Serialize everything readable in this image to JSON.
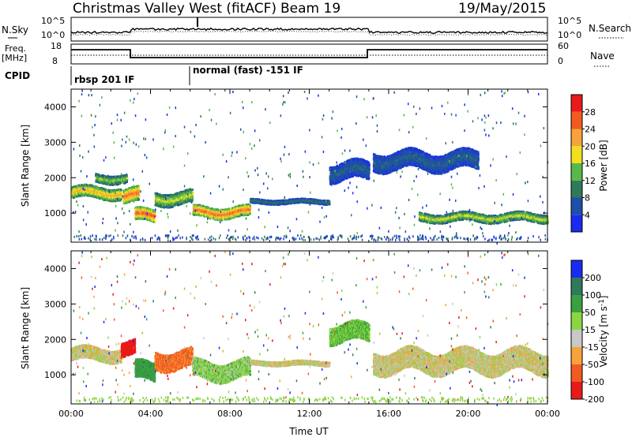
{
  "header": {
    "title": "Christmas Valley West (fitACF)",
    "beam": "Beam 19",
    "date": "19/May/2015"
  },
  "panels": {
    "nsky_label": "N.Sky",
    "nsearch_label": "N.Search",
    "nsky_ticks": [
      "10^5",
      "10^0"
    ],
    "nsearch_ticks": [
      "10^5",
      "10^0"
    ],
    "freq_label_1": "Freq.",
    "freq_label_2": "[MHz]",
    "freq_ticks": [
      "18",
      "8"
    ],
    "nave_label": "Nave",
    "nave_ticks": [
      "60",
      "0"
    ],
    "cpid_label": "CPID",
    "cpid_modes": [
      {
        "text": "rbsp 201 IF",
        "start_hour": 0
      },
      {
        "text": "normal (fast) -151 IF",
        "start_hour": 6
      }
    ]
  },
  "chart_data": [
    {
      "type": "heatmap",
      "name": "power",
      "ylabel": "Slant Range [km]",
      "yticks": [
        1000,
        2000,
        3000,
        4000
      ],
      "ylim": [
        180,
        4500
      ],
      "xlim_hours": [
        0,
        24
      ],
      "colorbar_label": "Power [dB]",
      "colorbar_ticks": [
        "4",
        "8",
        "12",
        "16",
        "20",
        "24",
        "28"
      ],
      "colorbar_colors": [
        "#1a2bf0",
        "#1f4faa",
        "#2f7a5a",
        "#58b84a",
        "#f0e020",
        "#f7a23a",
        "#f25a22",
        "#e81a1a"
      ],
      "echo_bands": [
        {
          "t0": 0.0,
          "t1": 2.5,
          "range_center": 1600,
          "half_width": 160,
          "power": 22
        },
        {
          "t0": 1.2,
          "t1": 2.8,
          "range_center": 2000,
          "half_width": 120,
          "power": 16
        },
        {
          "t0": 2.6,
          "t1": 3.4,
          "range_center": 1500,
          "half_width": 200,
          "power": 26
        },
        {
          "t0": 3.2,
          "t1": 4.2,
          "range_center": 950,
          "half_width": 170,
          "power": 27
        },
        {
          "t0": 4.2,
          "t1": 6.1,
          "range_center": 1450,
          "half_width": 180,
          "power": 18
        },
        {
          "t0": 6.1,
          "t1": 9.0,
          "range_center": 1050,
          "half_width": 150,
          "power": 26
        },
        {
          "t0": 9.0,
          "t1": 13.0,
          "range_center": 1350,
          "half_width": 60,
          "power": 10
        },
        {
          "t0": 13.0,
          "t1": 15.0,
          "range_center": 2200,
          "half_width": 250,
          "power": 8
        },
        {
          "t0": 15.2,
          "t1": 20.5,
          "range_center": 2500,
          "half_width": 250,
          "power": 8
        },
        {
          "t0": 17.5,
          "t1": 24.0,
          "range_center": 900,
          "half_width": 120,
          "power": 18
        }
      ]
    },
    {
      "type": "heatmap",
      "name": "velocity",
      "ylabel": "Slant Range [km]",
      "yticks": [
        1000,
        2000,
        3000,
        4000
      ],
      "ylim": [
        180,
        4500
      ],
      "xlim_hours": [
        0,
        24
      ],
      "xticks": [
        "00:00",
        "04:00",
        "08:00",
        "12:00",
        "16:00",
        "20:00",
        "00:00"
      ],
      "xlabel": "Time UT",
      "colorbar_label": "Velocity [m s^-1]",
      "colorbar_ticks": [
        "200",
        "100",
        "50",
        "15",
        "-15",
        "-50",
        "-100",
        "-200"
      ],
      "colorbar_colors": [
        "#1a2bf0",
        "#2f7a5a",
        "#3aa040",
        "#8ad640",
        "#c8c8c8",
        "#f7a23a",
        "#f25a22",
        "#e81a1a"
      ],
      "echo_bands": [
        {
          "t0": 0.0,
          "t1": 2.5,
          "range_center": 1600,
          "half_width": 180,
          "velocity": 0
        },
        {
          "t0": 2.5,
          "t1": 3.2,
          "range_center": 1750,
          "half_width": 200,
          "velocity": -150
        },
        {
          "t0": 3.2,
          "t1": 4.2,
          "range_center": 1100,
          "half_width": 250,
          "velocity": 60
        },
        {
          "t0": 4.2,
          "t1": 6.1,
          "range_center": 1450,
          "half_width": 250,
          "velocity": -40
        },
        {
          "t0": 6.1,
          "t1": 9.0,
          "range_center": 1150,
          "half_width": 250,
          "velocity": 20
        },
        {
          "t0": 9.0,
          "t1": 13.0,
          "range_center": 1350,
          "half_width": 60,
          "velocity": 0
        },
        {
          "t0": 13.0,
          "t1": 15.0,
          "range_center": 2200,
          "half_width": 250,
          "velocity": 30
        },
        {
          "t0": 15.2,
          "t1": 24.0,
          "range_center": 1400,
          "half_width": 300,
          "velocity": 0
        }
      ]
    }
  ]
}
